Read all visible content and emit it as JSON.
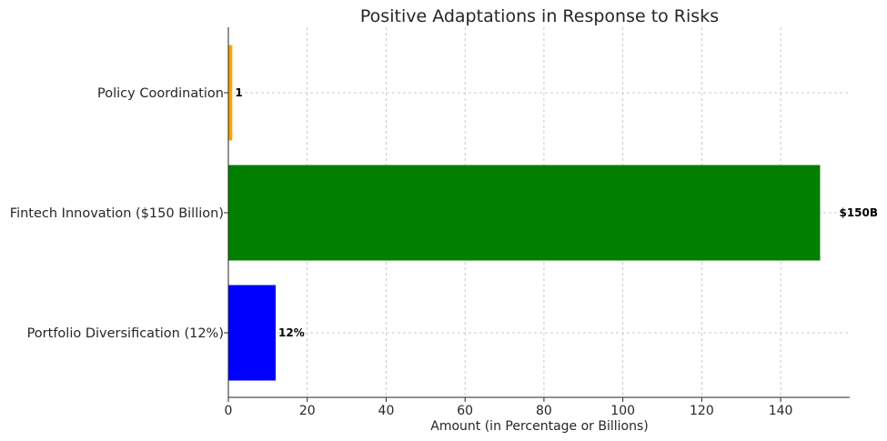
{
  "chart_data": {
    "type": "bar",
    "orientation": "horizontal",
    "title": "Positive Adaptations in Response to Risks",
    "xlabel": "Amount (in Percentage or Billions)",
    "ylabel": "",
    "xlim": [
      0,
      157.5
    ],
    "xticks": [
      0,
      20,
      40,
      60,
      80,
      100,
      120,
      140
    ],
    "grid": true,
    "categories": [
      "Portfolio Diversification (12%)",
      "Fintech Innovation ($150 Billion)",
      "Policy Coordination"
    ],
    "values": [
      12,
      150,
      1
    ],
    "data_labels": [
      "12%",
      "$150B",
      "1"
    ],
    "colors": [
      "#0000ff",
      "#008000",
      "#ffa500"
    ]
  }
}
